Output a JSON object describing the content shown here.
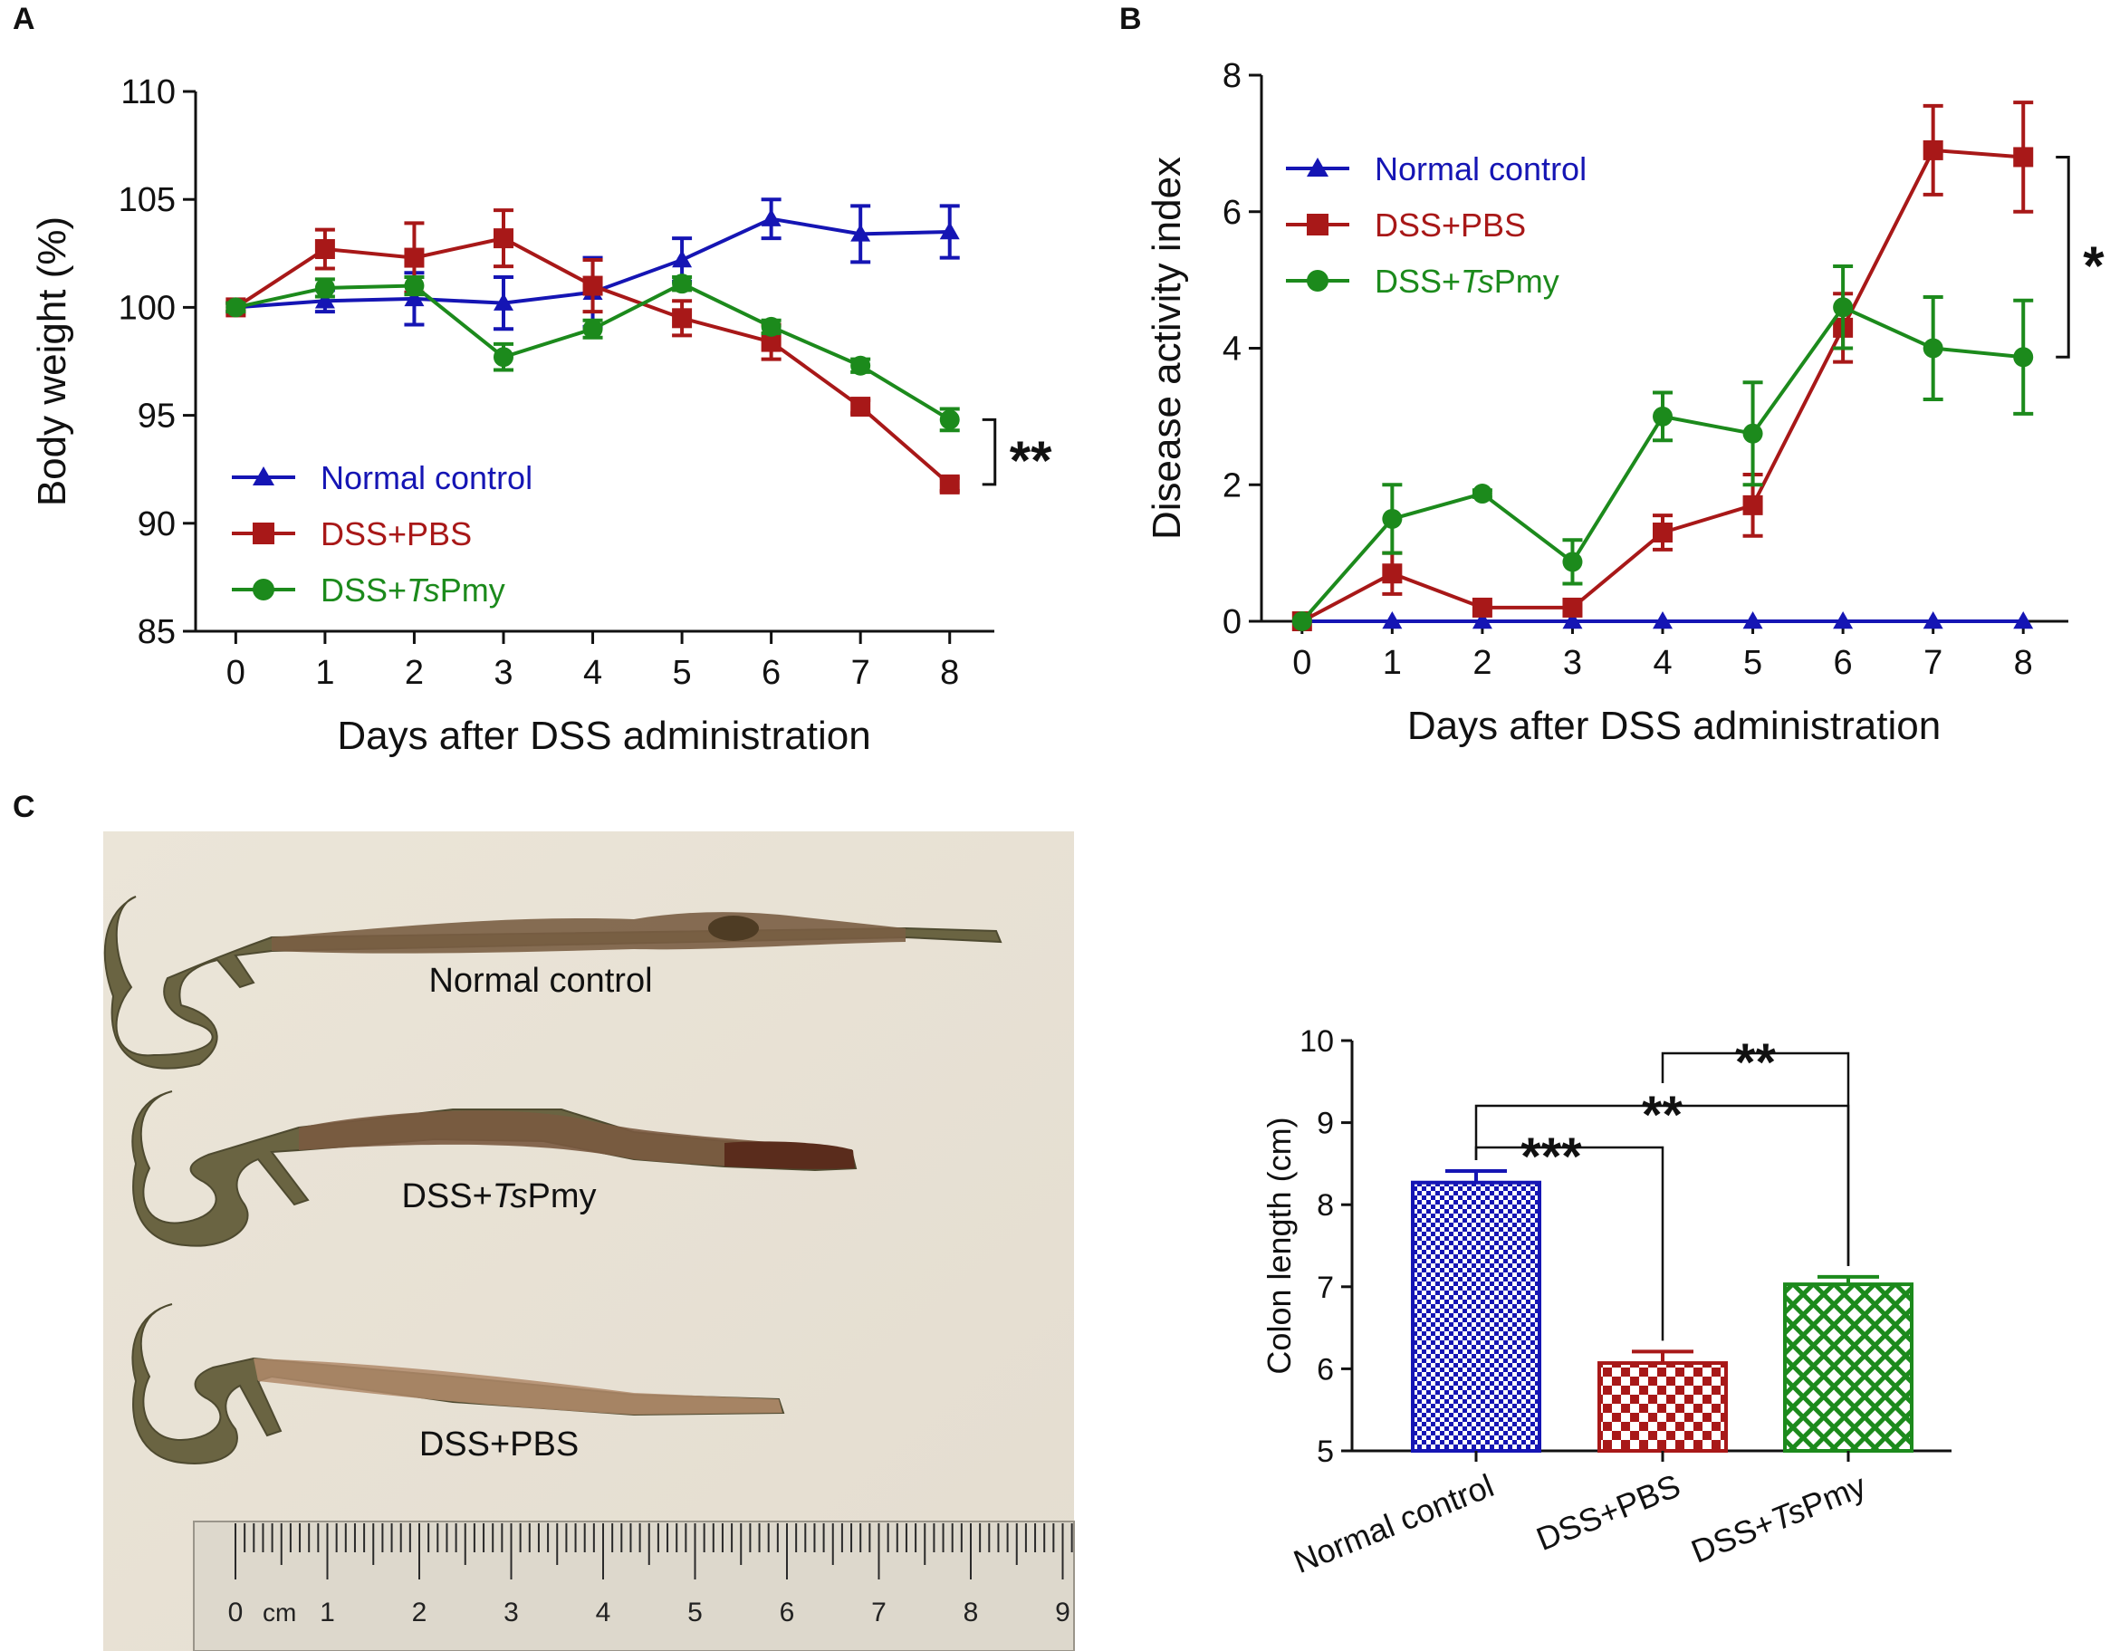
{
  "panels": {
    "a": "A",
    "b": "B",
    "c": "C"
  },
  "colors": {
    "normal": "#1515b4",
    "pbs": "#a81818",
    "tspmy": "#1c8a1c",
    "axis": "#111111"
  },
  "legend": [
    {
      "key": "normal",
      "label": "Normal control",
      "marker": "triangle"
    },
    {
      "key": "pbs",
      "label": "DSS+PBS",
      "marker": "square"
    },
    {
      "key": "tspmy",
      "label_pre": "DSS+",
      "label_it": "Ts",
      "label_post": "Pmy",
      "marker": "circle"
    }
  ],
  "chart_data": [
    {
      "id": "A",
      "type": "line",
      "xlabel": "Days after DSS administration",
      "ylabel": "Body weight (%)",
      "x": [
        0,
        1,
        2,
        3,
        4,
        5,
        6,
        7,
        8
      ],
      "ylim": [
        85,
        110
      ],
      "yticks": [
        85,
        90,
        95,
        100,
        105,
        110
      ],
      "series": [
        {
          "name": "Normal control",
          "key": "normal",
          "values": [
            100,
            100.3,
            100.4,
            100.2,
            100.7,
            102.2,
            104.1,
            103.4,
            103.5
          ],
          "errors": [
            0.2,
            0.5,
            1.2,
            1.2,
            1.6,
            1.0,
            0.9,
            1.3,
            1.2
          ]
        },
        {
          "name": "DSS+PBS",
          "key": "pbs",
          "values": [
            100,
            102.7,
            102.3,
            103.2,
            101.0,
            99.5,
            98.4,
            95.4,
            91.8
          ],
          "errors": [
            0.2,
            0.9,
            1.6,
            1.3,
            1.2,
            0.8,
            0.8,
            0.3,
            0.3
          ]
        },
        {
          "name": "DSS+TsPmy",
          "key": "tspmy",
          "values": [
            100,
            100.9,
            101.0,
            97.7,
            99.0,
            101.1,
            99.1,
            97.3,
            94.8
          ],
          "errors": [
            0.2,
            0.4,
            0.4,
            0.6,
            0.4,
            0.3,
            0.3,
            0.3,
            0.5
          ]
        }
      ],
      "annotation": "**"
    },
    {
      "id": "B",
      "type": "line",
      "xlabel": "Days after DSS administration",
      "ylabel": "Disease activity index",
      "x": [
        0,
        1,
        2,
        3,
        4,
        5,
        6,
        7,
        8
      ],
      "ylim": [
        0,
        8
      ],
      "yticks": [
        0,
        2,
        4,
        6,
        8
      ],
      "series": [
        {
          "name": "Normal control",
          "key": "normal",
          "values": [
            0,
            0,
            0,
            0,
            0,
            0,
            0,
            0,
            0
          ],
          "errors": [
            0,
            0,
            0,
            0,
            0,
            0,
            0,
            0,
            0
          ]
        },
        {
          "name": "DSS+PBS",
          "key": "pbs",
          "values": [
            0,
            0.7,
            0.2,
            0.2,
            1.3,
            1.7,
            4.3,
            6.9,
            6.8
          ],
          "errors": [
            0,
            0.3,
            0,
            0,
            0.25,
            0.45,
            0.5,
            0.65,
            0.8
          ]
        },
        {
          "name": "DSS+TsPmy",
          "key": "tspmy",
          "values": [
            0,
            1.5,
            1.87,
            0.87,
            3.0,
            2.75,
            4.6,
            4.0,
            3.87
          ],
          "errors": [
            0,
            0.5,
            0.05,
            0.32,
            0.35,
            0.75,
            0.6,
            0.75,
            0.83
          ]
        }
      ],
      "annotation": "*"
    },
    {
      "id": "C-bar",
      "type": "bar",
      "ylabel": "Colon length (cm)",
      "ylim": [
        5,
        10
      ],
      "yticks": [
        5,
        6,
        7,
        8,
        9,
        10
      ],
      "categories": [
        {
          "key": "normal",
          "pre": "Normal control",
          "it": "",
          "post": ""
        },
        {
          "key": "pbs",
          "pre": "DSS+PBS",
          "it": "",
          "post": ""
        },
        {
          "key": "tspmy",
          "pre": "DSS+",
          "it": "Ts",
          "post": "Pmy"
        }
      ],
      "values": [
        8.27,
        6.07,
        7.03
      ],
      "errors": [
        0.14,
        0.14,
        0.09
      ],
      "significance": [
        {
          "from": 0,
          "to": 1,
          "label": "***"
        },
        {
          "from": 0,
          "to": 2,
          "label": "**"
        },
        {
          "from": 1,
          "to": 2,
          "label": "**"
        }
      ]
    }
  ],
  "photo": {
    "labels": {
      "normal": "Normal control",
      "tspmy_pre": "DSS+",
      "tspmy_it": "Ts",
      "tspmy_post": "Pmy",
      "pbs": "DSS+PBS"
    },
    "ruler": {
      "unit": "cm",
      "numbers": [
        "0",
        "1",
        "2",
        "3",
        "4",
        "5",
        "6",
        "7",
        "8",
        "9"
      ]
    }
  }
}
